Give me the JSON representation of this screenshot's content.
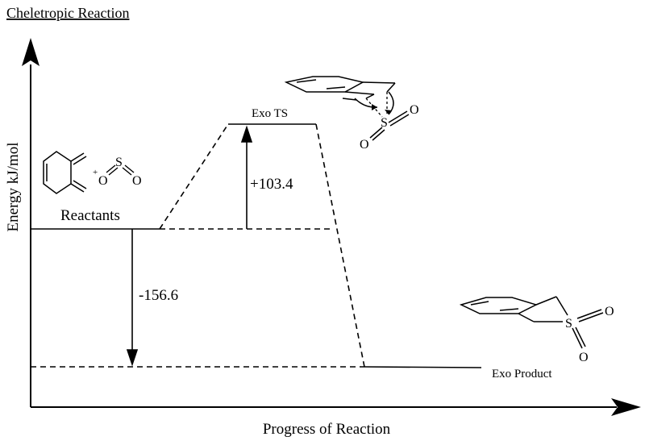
{
  "title": "Cheletropic Reaction",
  "axes": {
    "y_label": "Energy kJ/mol",
    "x_label": "Progress of Reaction"
  },
  "levels": {
    "reactants_label": "Reactants",
    "ts_label": "Exo TS",
    "product_label": "Exo Product"
  },
  "energies": {
    "barrier_label": "+103.4",
    "reaction_label": "-156.6"
  },
  "molecules": {
    "reactant_charge": "+",
    "so2_atoms": [
      "O",
      "S",
      "O"
    ],
    "ts_atoms": [
      "S",
      "O",
      "O"
    ],
    "product_atoms": [
      "S",
      "O",
      "O"
    ]
  }
}
